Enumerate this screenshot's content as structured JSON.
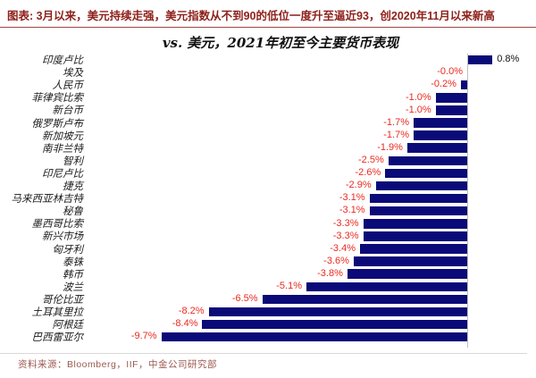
{
  "header": {
    "title": "图表: 3月以来，美元持续走强，美元指数从不到90的低位一度升至逼近93，创2020年11月以来新高"
  },
  "chart_data": {
    "type": "bar",
    "orientation": "horizontal",
    "title": "vs. 美元，2021年初至今主要货币表现",
    "categories": [
      "印度卢比",
      "埃及",
      "人民币",
      "菲律宾比索",
      "新台币",
      "俄罗斯卢布",
      "新加坡元",
      "南非兰特",
      "智利",
      "印尼卢比",
      "捷克",
      "马来西亚林吉特",
      "秘鲁",
      "墨西哥比索",
      "新兴市场",
      "匈牙利",
      "泰铢",
      "韩币",
      "波兰",
      "哥伦比亚",
      "土耳其里拉",
      "阿根廷",
      "巴西雷亚尔"
    ],
    "values": [
      0.8,
      -0.0,
      -0.2,
      -1.0,
      -1.0,
      -1.7,
      -1.7,
      -1.9,
      -2.5,
      -2.6,
      -2.9,
      -3.1,
      -3.1,
      -3.3,
      -3.3,
      -3.4,
      -3.6,
      -3.8,
      -5.1,
      -6.5,
      -8.2,
      -8.4,
      -9.7
    ],
    "value_labels": [
      "0.8%",
      "-0.0%",
      "-0.2%",
      "-1.0%",
      "-1.0%",
      "-1.7%",
      "-1.7%",
      "-1.9%",
      "-2.5%",
      "-2.6%",
      "-2.9%",
      "-3.1%",
      "-3.1%",
      "-3.3%",
      "-3.3%",
      "-3.4%",
      "-3.6%",
      "-3.8%",
      "-5.1%",
      "-6.5%",
      "-8.2%",
      "-8.4%",
      "-9.7%"
    ],
    "xlim": [
      -10.5,
      2.2
    ],
    "grid": false,
    "legend": "none",
    "bar_color": "#0a0a78",
    "negative_label_color": "#ea2a1f",
    "positive_label_color": "#111111",
    "axis_color": "#bfbfbf"
  },
  "footer": {
    "source": "资料来源：Bloomberg，IIF，中金公司研究部"
  }
}
